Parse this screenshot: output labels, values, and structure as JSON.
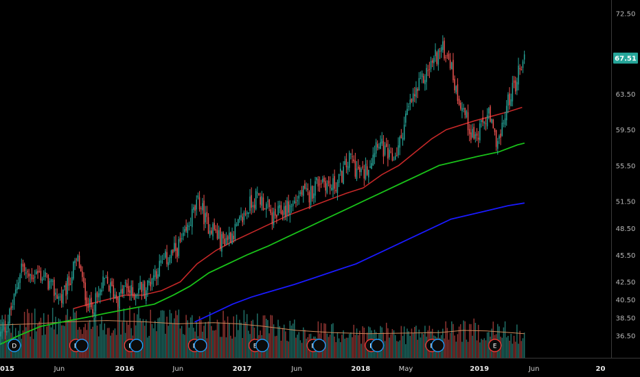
{
  "colors": {
    "background": "#000000",
    "up": "#26a69a",
    "down": "#ef5350",
    "ma_fast": "#c62828",
    "ma_mid": "#19c219",
    "ma_slow": "#1a1aff",
    "volume_ma": "#d08a5a",
    "last_price_bg": "#26a69a",
    "earnings_ring": "#e53935",
    "dividend_ring": "#2196f3"
  },
  "chart_data": {
    "type": "candlestick",
    "price_axis": {
      "ylim": [
        34.0,
        74.0
      ],
      "tick_labels": [
        "72.50",
        "63.50",
        "59.50",
        "55.50",
        "51.50",
        "48.50",
        "45.50",
        "42.50",
        "40.50",
        "38.50",
        "36.50"
      ],
      "tick_values": [
        72.5,
        63.5,
        59.5,
        55.5,
        51.5,
        48.5,
        45.5,
        42.5,
        40.5,
        38.5,
        36.5
      ],
      "last_price_label": "67.51",
      "last_price": 67.51
    },
    "time_axis": {
      "xlim": [
        0.0,
        5.15
      ],
      "labels": [
        {
          "text": "2015",
          "t": 0.04,
          "bold": true
        },
        {
          "text": "Jun",
          "t": 0.5,
          "bold": false
        },
        {
          "text": "2016",
          "t": 1.05,
          "bold": true
        },
        {
          "text": "Jun",
          "t": 1.5,
          "bold": false
        },
        {
          "text": "2017",
          "t": 2.04,
          "bold": true
        },
        {
          "text": "Jun",
          "t": 2.5,
          "bold": false
        },
        {
          "text": "2018",
          "t": 3.04,
          "bold": true
        },
        {
          "text": "May",
          "t": 3.42,
          "bold": false
        },
        {
          "text": "2019",
          "t": 4.04,
          "bold": true
        },
        {
          "text": "Jun",
          "t": 4.5,
          "bold": false
        },
        {
          "text": "20",
          "t": 5.06,
          "bold": true
        }
      ]
    },
    "price_path": [
      [
        0.0,
        36.5
      ],
      [
        0.05,
        37.5
      ],
      [
        0.12,
        40.5
      ],
      [
        0.18,
        44.5
      ],
      [
        0.23,
        43.0
      ],
      [
        0.3,
        43.5
      ],
      [
        0.38,
        43.0
      ],
      [
        0.45,
        41.5
      ],
      [
        0.52,
        40.5
      ],
      [
        0.57,
        42.0
      ],
      [
        0.62,
        44.0
      ],
      [
        0.66,
        45.0
      ],
      [
        0.7,
        42.0
      ],
      [
        0.76,
        39.5
      ],
      [
        0.82,
        40.5
      ],
      [
        0.88,
        42.5
      ],
      [
        0.95,
        41.5
      ],
      [
        1.0,
        40.5
      ],
      [
        1.05,
        42.0
      ],
      [
        1.12,
        41.0
      ],
      [
        1.18,
        42.0
      ],
      [
        1.22,
        41.5
      ],
      [
        1.3,
        43.5
      ],
      [
        1.4,
        45.0
      ],
      [
        1.48,
        46.0
      ],
      [
        1.56,
        47.5
      ],
      [
        1.62,
        50.0
      ],
      [
        1.68,
        51.5
      ],
      [
        1.74,
        49.0
      ],
      [
        1.8,
        48.5
      ],
      [
        1.86,
        47.0
      ],
      [
        1.92,
        47.5
      ],
      [
        2.0,
        48.5
      ],
      [
        2.06,
        50.0
      ],
      [
        2.12,
        51.5
      ],
      [
        2.18,
        52.0
      ],
      [
        2.24,
        51.0
      ],
      [
        2.3,
        49.5
      ],
      [
        2.38,
        50.5
      ],
      [
        2.46,
        51.0
      ],
      [
        2.54,
        52.5
      ],
      [
        2.6,
        52.0
      ],
      [
        2.66,
        53.5
      ],
      [
        2.72,
        54.0
      ],
      [
        2.78,
        53.0
      ],
      [
        2.84,
        53.5
      ],
      [
        2.9,
        55.0
      ],
      [
        2.96,
        56.5
      ],
      [
        3.0,
        55.0
      ],
      [
        3.06,
        54.5
      ],
      [
        3.12,
        56.0
      ],
      [
        3.18,
        58.5
      ],
      [
        3.24,
        57.0
      ],
      [
        3.3,
        56.0
      ],
      [
        3.36,
        57.5
      ],
      [
        3.42,
        61.0
      ],
      [
        3.48,
        63.0
      ],
      [
        3.54,
        64.5
      ],
      [
        3.6,
        66.0
      ],
      [
        3.66,
        67.5
      ],
      [
        3.72,
        68.5
      ],
      [
        3.78,
        68.0
      ],
      [
        3.84,
        64.0
      ],
      [
        3.9,
        62.0
      ],
      [
        3.96,
        59.5
      ],
      [
        4.02,
        58.5
      ],
      [
        4.08,
        60.5
      ],
      [
        4.12,
        61.0
      ],
      [
        4.17,
        58.5
      ],
      [
        4.22,
        58.5
      ],
      [
        4.26,
        61.5
      ],
      [
        4.3,
        63.5
      ],
      [
        4.34,
        64.5
      ],
      [
        4.38,
        66.5
      ],
      [
        4.42,
        67.5
      ]
    ],
    "ma_fast_path": [
      [
        0.62,
        39.5
      ],
      [
        0.75,
        40.0
      ],
      [
        0.9,
        40.5
      ],
      [
        1.05,
        41.0
      ],
      [
        1.2,
        41.0
      ],
      [
        1.36,
        41.5
      ],
      [
        1.52,
        42.5
      ],
      [
        1.66,
        44.5
      ],
      [
        1.82,
        46.0
      ],
      [
        1.96,
        47.0
      ],
      [
        2.12,
        48.0
      ],
      [
        2.28,
        49.0
      ],
      [
        2.44,
        50.0
      ],
      [
        2.6,
        50.8
      ],
      [
        2.76,
        51.6
      ],
      [
        2.92,
        52.4
      ],
      [
        3.06,
        53.0
      ],
      [
        3.22,
        54.5
      ],
      [
        3.36,
        55.5
      ],
      [
        3.5,
        57.0
      ],
      [
        3.64,
        58.5
      ],
      [
        3.76,
        59.5
      ],
      [
        3.88,
        60.0
      ],
      [
        4.0,
        60.5
      ],
      [
        4.14,
        61.0
      ],
      [
        4.28,
        61.5
      ],
      [
        4.4,
        62.0
      ]
    ],
    "ma_mid_path": [
      [
        0.0,
        35.5
      ],
      [
        0.16,
        36.5
      ],
      [
        0.34,
        37.5
      ],
      [
        0.52,
        38.0
      ],
      [
        0.72,
        38.5
      ],
      [
        0.9,
        39.0
      ],
      [
        1.1,
        39.5
      ],
      [
        1.3,
        40.0
      ],
      [
        1.46,
        41.0
      ],
      [
        1.6,
        42.0
      ],
      [
        1.76,
        43.5
      ],
      [
        1.92,
        44.5
      ],
      [
        2.08,
        45.5
      ],
      [
        2.26,
        46.5
      ],
      [
        2.42,
        47.5
      ],
      [
        2.58,
        48.5
      ],
      [
        2.74,
        49.5
      ],
      [
        2.9,
        50.5
      ],
      [
        3.06,
        51.5
      ],
      [
        3.22,
        52.5
      ],
      [
        3.38,
        53.5
      ],
      [
        3.54,
        54.5
      ],
      [
        3.7,
        55.5
      ],
      [
        3.86,
        56.0
      ],
      [
        4.02,
        56.5
      ],
      [
        4.2,
        57.0
      ],
      [
        4.36,
        57.8
      ],
      [
        4.42,
        58.0
      ]
    ],
    "ma_slow_path": [
      [
        1.64,
        38.0
      ],
      [
        1.8,
        39.0
      ],
      [
        1.96,
        40.0
      ],
      [
        2.12,
        40.8
      ],
      [
        2.3,
        41.5
      ],
      [
        2.48,
        42.2
      ],
      [
        2.66,
        43.0
      ],
      [
        2.84,
        43.8
      ],
      [
        3.0,
        44.5
      ],
      [
        3.16,
        45.5
      ],
      [
        3.32,
        46.5
      ],
      [
        3.48,
        47.5
      ],
      [
        3.64,
        48.5
      ],
      [
        3.8,
        49.5
      ],
      [
        3.96,
        50.0
      ],
      [
        4.12,
        50.5
      ],
      [
        4.28,
        51.0
      ],
      [
        4.42,
        51.3
      ]
    ],
    "volume_ma_path": [
      [
        0.0,
        0.6
      ],
      [
        0.3,
        0.62
      ],
      [
        0.6,
        0.66
      ],
      [
        0.9,
        0.68
      ],
      [
        1.2,
        0.66
      ],
      [
        1.5,
        0.62
      ],
      [
        1.8,
        0.64
      ],
      [
        2.0,
        0.62
      ],
      [
        2.2,
        0.58
      ],
      [
        2.5,
        0.5
      ],
      [
        2.8,
        0.46
      ],
      [
        3.1,
        0.44
      ],
      [
        3.4,
        0.45
      ],
      [
        3.7,
        0.46
      ],
      [
        3.9,
        0.5
      ],
      [
        4.1,
        0.49
      ],
      [
        4.3,
        0.46
      ],
      [
        4.42,
        0.44
      ]
    ],
    "event_markers": [
      {
        "t": 0.12,
        "label": "D",
        "kind": "dividend"
      },
      {
        "t": 0.64,
        "label": "E",
        "kind": "earnings"
      },
      {
        "t": 0.69,
        "label": "",
        "kind": "dividend"
      },
      {
        "t": 1.1,
        "label": "E",
        "kind": "earnings"
      },
      {
        "t": 1.15,
        "label": "",
        "kind": "dividend"
      },
      {
        "t": 1.64,
        "label": "E",
        "kind": "earnings"
      },
      {
        "t": 1.69,
        "label": "",
        "kind": "dividend"
      },
      {
        "t": 2.15,
        "label": "E",
        "kind": "earnings"
      },
      {
        "t": 2.21,
        "label": "",
        "kind": "dividend"
      },
      {
        "t": 2.64,
        "label": "E",
        "kind": "earnings"
      },
      {
        "t": 2.69,
        "label": "",
        "kind": "dividend"
      },
      {
        "t": 3.13,
        "label": "E",
        "kind": "earnings"
      },
      {
        "t": 3.18,
        "label": "",
        "kind": "dividend"
      },
      {
        "t": 3.64,
        "label": "E",
        "kind": "earnings"
      },
      {
        "t": 3.69,
        "label": "",
        "kind": "dividend"
      },
      {
        "t": 4.17,
        "label": "E",
        "kind": "earnings"
      }
    ]
  }
}
